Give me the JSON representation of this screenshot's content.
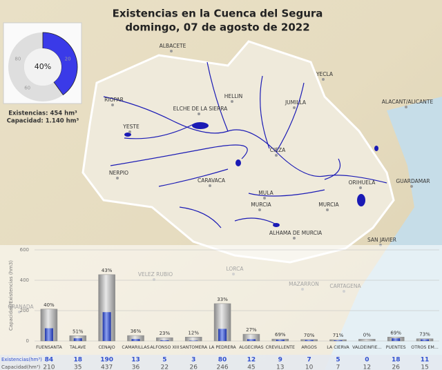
{
  "header": {
    "title": "Existencias en la Cuenca del Segura",
    "subtitle": "domingo, 07 de agosto de 2022"
  },
  "gauge": {
    "value": 40,
    "label": "40%",
    "ticks": [
      20,
      60,
      80
    ],
    "color": "#3a3ae8"
  },
  "summary": {
    "existencias": "Existencias: 454 hm³",
    "capacidad": "Capacidad: 1.140 hm³"
  },
  "map_labels": [
    "ALBACETE",
    "YECLA",
    "HELLIN",
    "RIOPAR",
    "ELCHE DE LA SIERRA",
    "JUMILLA",
    "ALACANT/ALICANTE",
    "YESTE",
    "CIEZA",
    "NERPIO",
    "CARAVACA",
    "ORIHUELA",
    "GUARDAMAR",
    "MULA",
    "MURCIA",
    "MURCIA",
    "ALHAMA DE MURCIA",
    "SAN JAVIER",
    "VELEZ RUBIO",
    "LORCA",
    "MAZARRON",
    "CARTAGENA",
    "GRANADA"
  ],
  "chart_data": {
    "type": "bar",
    "y_label": "Capacidad/Existencias (hm3)",
    "categories": [
      "FUENSANTA",
      "TALAVE",
      "CENAJO",
      "CAMARILLAS",
      "ALFONSO XIII",
      "SANTOMERA",
      "LA PEDRERA",
      "ALGECIRAS",
      "CREVILLENTE",
      "ARGOS",
      "LA CIERVA",
      "VALDEINFIE...",
      "PUENTES",
      "OTROS EM..."
    ],
    "series": [
      {
        "name": "Existencias(hm³)",
        "color": "#2f4fd0",
        "values": [
          84,
          18,
          190,
          13,
          5,
          3,
          80,
          12,
          9,
          7,
          5,
          0,
          18,
          11
        ]
      },
      {
        "name": "Capacidad(hm³)",
        "color": "#9a9a9a",
        "values": [
          210,
          35,
          437,
          36,
          22,
          26,
          246,
          45,
          13,
          10,
          7,
          12,
          26,
          15
        ]
      }
    ],
    "percent": {
      "values": [
        40,
        51,
        43,
        36,
        23,
        12,
        33,
        27,
        69,
        70,
        71,
        0,
        69,
        73
      ],
      "value_labels": [
        "40%",
        "51%",
        "43%",
        "36%",
        "23%",
        "12%",
        "33%",
        "27%",
        "69%",
        "70%",
        "71%",
        "0%",
        "69%",
        "73%"
      ]
    },
    "ylim": [
      0,
      600
    ],
    "yticks": [
      0,
      200,
      400,
      600
    ],
    "grid": true
  }
}
